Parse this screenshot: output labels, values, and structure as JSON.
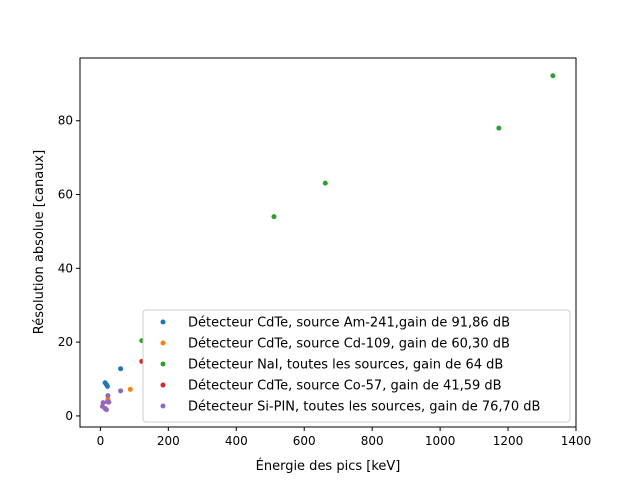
{
  "chart_data": {
    "type": "scatter",
    "xlabel": "Énergie des pics [keV]",
    "ylabel": "Résolution absolue [canaux]",
    "xlim": [
      -60,
      1400
    ],
    "ylim": [
      -3,
      97
    ],
    "xticks": [
      0,
      200,
      400,
      600,
      800,
      1000,
      1200,
      1400
    ],
    "yticks": [
      0,
      20,
      40,
      60,
      80
    ],
    "grid": false,
    "legend_position": "lower right",
    "series": [
      {
        "name": "Détecteur CdTe, source Am-241,gain de 91,86 dB",
        "color": "#1f77b4",
        "points": [
          [
            13.9,
            9.0
          ],
          [
            17.8,
            8.5
          ],
          [
            20.8,
            8.0
          ],
          [
            59.5,
            12.8
          ]
        ]
      },
      {
        "name": "Détecteur CdTe, source Cd-109, gain de 60,30 dB",
        "color": "#ff7f0e",
        "points": [
          [
            22.1,
            4.6
          ],
          [
            88.0,
            7.2
          ]
        ]
      },
      {
        "name": "Détecteur NaI, toutes les sources, gain de 64 dB",
        "color": "#2ca02c",
        "points": [
          [
            122.0,
            20.4
          ],
          [
            511.0,
            54.0
          ],
          [
            662.0,
            63.1
          ],
          [
            1173.0,
            78.0
          ],
          [
            1332.0,
            92.2
          ]
        ]
      },
      {
        "name": "Détecteur CdTe, source Co-57, gain de 41,59 dB",
        "color": "#d62728",
        "points": [
          [
            122.0,
            14.8
          ]
        ]
      },
      {
        "name": "Détecteur Si-PIN, toutes les sources, gain de 76,70 dB",
        "color": "#9467bd",
        "points": [
          [
            5.9,
            2.6
          ],
          [
            8.0,
            3.6
          ],
          [
            13.9,
            2.0
          ],
          [
            17.8,
            1.7
          ],
          [
            20.8,
            3.8
          ],
          [
            22.1,
            5.5
          ],
          [
            25.0,
            3.7
          ],
          [
            59.5,
            6.8
          ]
        ]
      }
    ]
  }
}
